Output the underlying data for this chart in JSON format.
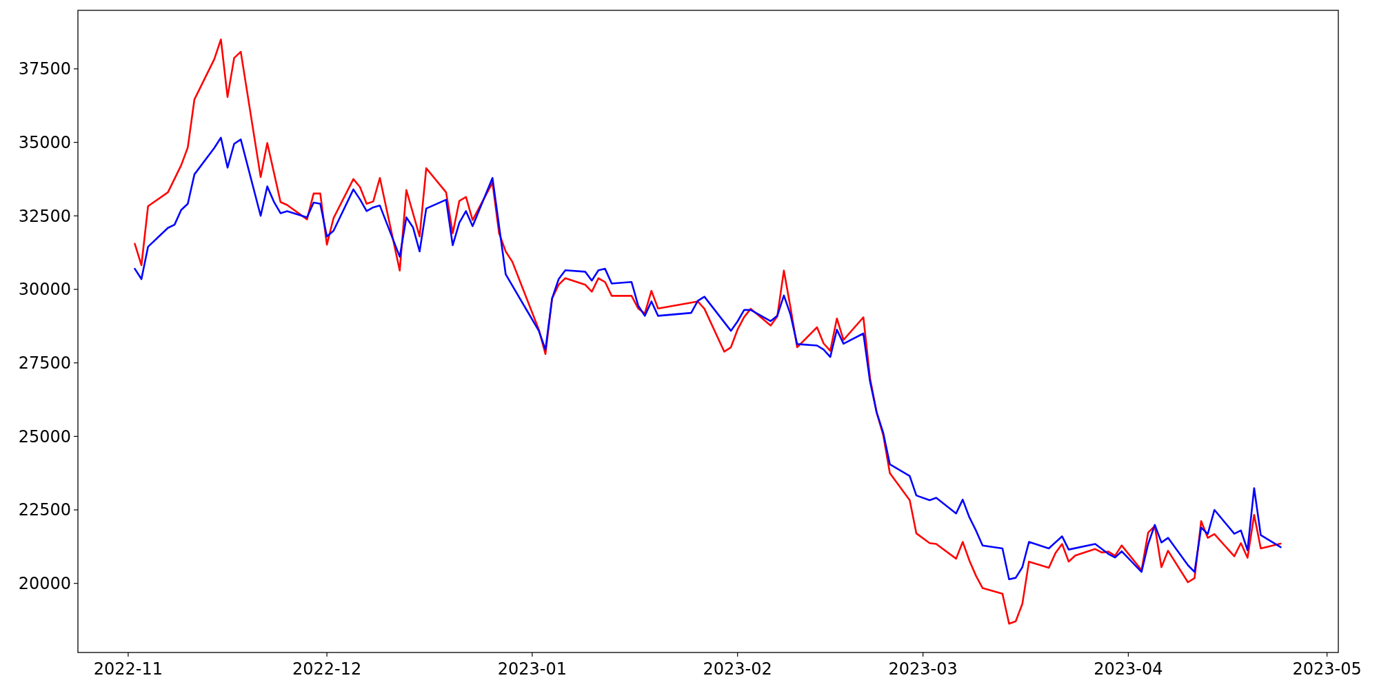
{
  "chart_data": {
    "type": "line",
    "xlim": [
      "2022-10-24T09:50",
      "2023-05-02T17:00"
    ],
    "ylim": [
      17650,
      39490
    ],
    "xticks": [
      {
        "value": "2022-11-01",
        "label": "2022-11"
      },
      {
        "value": "2022-12-01",
        "label": "2022-12"
      },
      {
        "value": "2023-01-01",
        "label": "2023-01"
      },
      {
        "value": "2023-02-01",
        "label": "2023-02"
      },
      {
        "value": "2023-03-01",
        "label": "2023-03"
      },
      {
        "value": "2023-04-01",
        "label": "2023-04"
      },
      {
        "value": "2023-05-01",
        "label": "2023-05"
      }
    ],
    "yticks": [
      20000,
      22500,
      25000,
      27500,
      30000,
      32500,
      35000,
      37500
    ],
    "grid": false,
    "marker": "none",
    "line_style": "solid",
    "series": [
      {
        "color": "#ff0000",
        "x": [
          "2022-11-02",
          "2022-11-03",
          "2022-11-04",
          "2022-11-07",
          "2022-11-09",
          "2022-11-10",
          "2022-11-11",
          "2022-11-14",
          "2022-11-15",
          "2022-11-16",
          "2022-11-17",
          "2022-11-18",
          "2022-11-21",
          "2022-11-22",
          "2022-11-24",
          "2022-11-25",
          "2022-11-28",
          "2022-11-29",
          "2022-11-30",
          "2022-12-01",
          "2022-12-02",
          "2022-12-05",
          "2022-12-06",
          "2022-12-07",
          "2022-12-08",
          "2022-12-09",
          "2022-12-12",
          "2022-12-13",
          "2022-12-15",
          "2022-12-16",
          "2022-12-19",
          "2022-12-20",
          "2022-12-21",
          "2022-12-22",
          "2022-12-23",
          "2022-12-26",
          "2022-12-27",
          "2022-12-28",
          "2022-12-29",
          "2023-01-02",
          "2023-01-03",
          "2023-01-04",
          "2023-01-05",
          "2023-01-06",
          "2023-01-09",
          "2023-01-10",
          "2023-01-11",
          "2023-01-12",
          "2023-01-13",
          "2023-01-16",
          "2023-01-17",
          "2023-01-18",
          "2023-01-19",
          "2023-01-20",
          "2023-01-25",
          "2023-01-26",
          "2023-01-27",
          "2023-01-30",
          "2023-01-31",
          "2023-02-01",
          "2023-02-02",
          "2023-02-03",
          "2023-02-06",
          "2023-02-07",
          "2023-02-08",
          "2023-02-09",
          "2023-02-10",
          "2023-02-13",
          "2023-02-14",
          "2023-02-15",
          "2023-02-16",
          "2023-02-17",
          "2023-02-20",
          "2023-02-21",
          "2023-02-22",
          "2023-02-23",
          "2023-02-24",
          "2023-02-27",
          "2023-02-28",
          "2023-03-02",
          "2023-03-03",
          "2023-03-06",
          "2023-03-07",
          "2023-03-08",
          "2023-03-09",
          "2023-03-10",
          "2023-03-13",
          "2023-03-14",
          "2023-03-15",
          "2023-03-16",
          "2023-03-17",
          "2023-03-20",
          "2023-03-21",
          "2023-03-22",
          "2023-03-23",
          "2023-03-24",
          "2023-03-27",
          "2023-03-28",
          "2023-03-29",
          "2023-03-30",
          "2023-03-31",
          "2023-04-03",
          "2023-04-04",
          "2023-04-05",
          "2023-04-06",
          "2023-04-07",
          "2023-04-10",
          "2023-04-11",
          "2023-04-12",
          "2023-04-13",
          "2023-04-14",
          "2023-04-17",
          "2023-04-18",
          "2023-04-19",
          "2023-04-20",
          "2023-04-21",
          "2023-04-24"
        ],
        "values": [
          31550,
          30820,
          32830,
          33300,
          34220,
          34830,
          36460,
          37830,
          38500,
          36540,
          37870,
          38080,
          33820,
          34980,
          32970,
          32870,
          32380,
          33260,
          33260,
          31520,
          32420,
          33750,
          33480,
          32910,
          32990,
          33790,
          30640,
          33380,
          31800,
          34120,
          33300,
          31910,
          33010,
          33140,
          32360,
          33630,
          31910,
          31290,
          30940,
          28630,
          27800,
          29690,
          30160,
          30380,
          30160,
          29920,
          30380,
          30250,
          29780,
          29780,
          29350,
          29180,
          29950,
          29350,
          29550,
          29590,
          29340,
          27880,
          28030,
          28630,
          29060,
          29340,
          28770,
          29080,
          30640,
          29380,
          28030,
          28710,
          28160,
          27910,
          29010,
          28280,
          29050,
          26990,
          25820,
          25040,
          23750,
          22830,
          21700,
          21370,
          21340,
          20840,
          21410,
          20780,
          20260,
          19840,
          19650,
          18630,
          18710,
          19300,
          20740,
          20530,
          21030,
          21340,
          20740,
          20950,
          21170,
          21050,
          21080,
          20940,
          21290,
          20450,
          21730,
          21950,
          20550,
          21110,
          20040,
          20180,
          22120,
          21550,
          21680,
          20920,
          21370,
          20870,
          22330,
          21190,
          21350
        ]
      },
      {
        "color": "#0000ff",
        "x": [
          "2022-11-02",
          "2022-11-03",
          "2022-11-04",
          "2022-11-07",
          "2022-11-08",
          "2022-11-09",
          "2022-11-10",
          "2022-11-11",
          "2022-11-14",
          "2022-11-15",
          "2022-11-16",
          "2022-11-17",
          "2022-11-18",
          "2022-11-21",
          "2022-11-22",
          "2022-11-23",
          "2022-11-24",
          "2022-11-25",
          "2022-11-28",
          "2022-11-29",
          "2022-11-30",
          "2022-12-01",
          "2022-12-02",
          "2022-12-05",
          "2022-12-06",
          "2022-12-07",
          "2022-12-08",
          "2022-12-09",
          "2022-12-12",
          "2022-12-13",
          "2022-12-14",
          "2022-12-15",
          "2022-12-16",
          "2022-12-19",
          "2022-12-20",
          "2022-12-21",
          "2022-12-22",
          "2022-12-23",
          "2022-12-26",
          "2022-12-28",
          "2023-01-02",
          "2023-01-03",
          "2023-01-04",
          "2023-01-05",
          "2023-01-06",
          "2023-01-09",
          "2023-01-10",
          "2023-01-11",
          "2023-01-12",
          "2023-01-13",
          "2023-01-16",
          "2023-01-17",
          "2023-01-18",
          "2023-01-19",
          "2023-01-20",
          "2023-01-25",
          "2023-01-26",
          "2023-01-27",
          "2023-01-31",
          "2023-02-01",
          "2023-02-02",
          "2023-02-03",
          "2023-02-06",
          "2023-02-07",
          "2023-02-08",
          "2023-02-09",
          "2023-02-10",
          "2023-02-13",
          "2023-02-14",
          "2023-02-15",
          "2023-02-16",
          "2023-02-17",
          "2023-02-20",
          "2023-02-21",
          "2023-02-22",
          "2023-02-23",
          "2023-02-24",
          "2023-02-27",
          "2023-02-28",
          "2023-03-02",
          "2023-03-03",
          "2023-03-06",
          "2023-03-07",
          "2023-03-08",
          "2023-03-09",
          "2023-03-10",
          "2023-03-13",
          "2023-03-14",
          "2023-03-15",
          "2023-03-16",
          "2023-03-17",
          "2023-03-20",
          "2023-03-22",
          "2023-03-23",
          "2023-03-27",
          "2023-03-28",
          "2023-03-29",
          "2023-03-30",
          "2023-03-31",
          "2023-04-03",
          "2023-04-04",
          "2023-04-05",
          "2023-04-06",
          "2023-04-07",
          "2023-04-10",
          "2023-04-11",
          "2023-04-12",
          "2023-04-13",
          "2023-04-14",
          "2023-04-17",
          "2023-04-18",
          "2023-04-19",
          "2023-04-20",
          "2023-04-21",
          "2023-04-24"
        ],
        "values": [
          30700,
          30350,
          31450,
          32090,
          32200,
          32700,
          32910,
          33910,
          34810,
          35160,
          34140,
          34950,
          35100,
          32500,
          33500,
          32980,
          32590,
          32660,
          32450,
          32950,
          32910,
          31800,
          31990,
          33400,
          33060,
          32660,
          32790,
          32850,
          31110,
          32450,
          32110,
          31290,
          32750,
          33050,
          31500,
          32270,
          32660,
          32150,
          33790,
          30510,
          28590,
          27950,
          29690,
          30350,
          30650,
          30600,
          30300,
          30650,
          30700,
          30200,
          30250,
          29450,
          29100,
          29590,
          29100,
          29200,
          29610,
          29750,
          28590,
          28910,
          29300,
          29300,
          28920,
          29100,
          29790,
          29140,
          28140,
          28090,
          27950,
          27700,
          28630,
          28150,
          28500,
          26870,
          25820,
          25120,
          24050,
          23650,
          22990,
          22830,
          22910,
          22380,
          22850,
          22250,
          21800,
          21290,
          21190,
          20140,
          20190,
          20550,
          21410,
          21190,
          21600,
          21150,
          21340,
          21170,
          21000,
          20880,
          21090,
          20390,
          21340,
          21990,
          21390,
          21550,
          20620,
          20390,
          21900,
          21680,
          22500,
          21690,
          21800,
          21130,
          23240,
          21640,
          21230
        ]
      }
    ]
  }
}
